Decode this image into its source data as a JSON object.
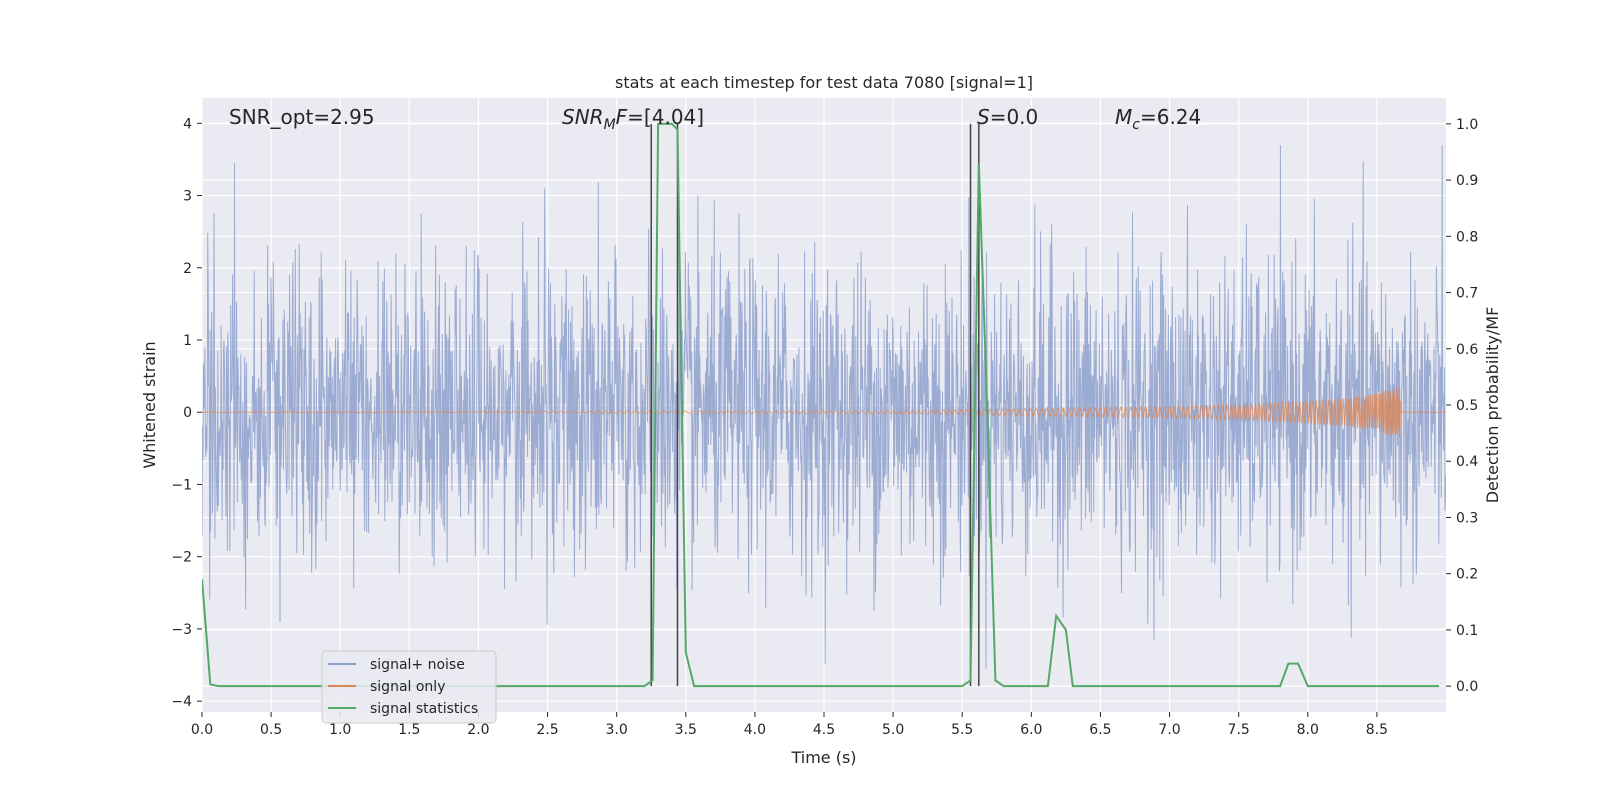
{
  "chart_data": {
    "type": "line",
    "title": "stats at each timestep for test data 7080 [signal=1]",
    "xlabel": "Time (s)",
    "ylabel_left": "Whitened strain",
    "ylabel_right": "Detection probability/MF",
    "xlim": [
      0.0,
      9.0
    ],
    "ylim_left": [
      -4.15,
      4.35
    ],
    "ylim_right": [
      -0.046,
      1.046
    ],
    "x_ticks": [
      "0.0",
      "0.5",
      "1.0",
      "1.5",
      "2.0",
      "2.5",
      "3.0",
      "3.5",
      "4.0",
      "4.5",
      "5.0",
      "5.5",
      "6.0",
      "6.5",
      "7.0",
      "7.5",
      "8.0",
      "8.5"
    ],
    "y_ticks_left": [
      "4",
      "3",
      "2",
      "1",
      "0",
      "−1",
      "−2",
      "−3",
      "−4"
    ],
    "y_ticks_right": [
      "1.0",
      "0.9",
      "0.8",
      "0.7",
      "0.6",
      "0.5",
      "0.4",
      "0.3",
      "0.2",
      "0.1",
      "0.0"
    ],
    "annotations": {
      "snr_opt": "SNR_opt=2.95",
      "snr_mf_sym": "SNR",
      "snr_mf_sub": "M",
      "snr_mf_sym2": "F",
      "snr_mf_val": "=[4.04]",
      "s_sym": "S",
      "s_val": "=0.0",
      "mc_sym": "M",
      "mc_sub": "c",
      "mc_val": "=6.24"
    },
    "series": [
      {
        "name": "signal+ noise",
        "color": "#8da0cb",
        "axis": "left",
        "description": "whitened strain noise, roughly uniform amplitude ~±2 with spikes up to ±3.7",
        "x_range": [
          0.0,
          9.0
        ]
      },
      {
        "name": "signal only",
        "color": "#dd8452",
        "axis": "left",
        "description": "chirp signal, near zero then growing amplitude until merger",
        "x": [
          0.0,
          5.0,
          6.0,
          7.0,
          7.5,
          8.0,
          8.3,
          8.5,
          8.6,
          8.67
        ],
        "amplitude": [
          0.0,
          0.02,
          0.05,
          0.08,
          0.11,
          0.16,
          0.2,
          0.26,
          0.33,
          0.36
        ]
      },
      {
        "name": "signal statistics",
        "color": "#55a868",
        "axis": "right",
        "x": [
          0.0,
          0.06,
          0.12,
          3.2,
          3.26,
          3.3,
          3.35,
          3.4,
          3.44,
          3.5,
          3.56,
          5.5,
          5.56,
          5.62,
          5.68,
          5.74,
          5.8,
          6.12,
          6.18,
          6.25,
          6.3,
          7.8,
          7.86,
          7.93,
          8.0,
          8.5,
          8.95
        ],
        "y": [
          0.19,
          0.003,
          0.0,
          0.0,
          0.01,
          1.0,
          1.0,
          1.0,
          0.99,
          0.06,
          0.0,
          0.0,
          0.01,
          0.93,
          0.5,
          0.01,
          0.0,
          0.0,
          0.125,
          0.1,
          0.0,
          0.0,
          0.04,
          0.04,
          0.0,
          0.0,
          0.0
        ]
      }
    ],
    "vertical_lines": [
      3.25,
      3.44,
      5.56,
      5.62
    ],
    "legend": {
      "position": "lower-left",
      "entries": [
        {
          "label": "signal+ noise",
          "color": "#8da0cb"
        },
        {
          "label": "signal only",
          "color": "#dd8452"
        },
        {
          "label": "signal statistics",
          "color": "#55a868"
        }
      ]
    }
  }
}
